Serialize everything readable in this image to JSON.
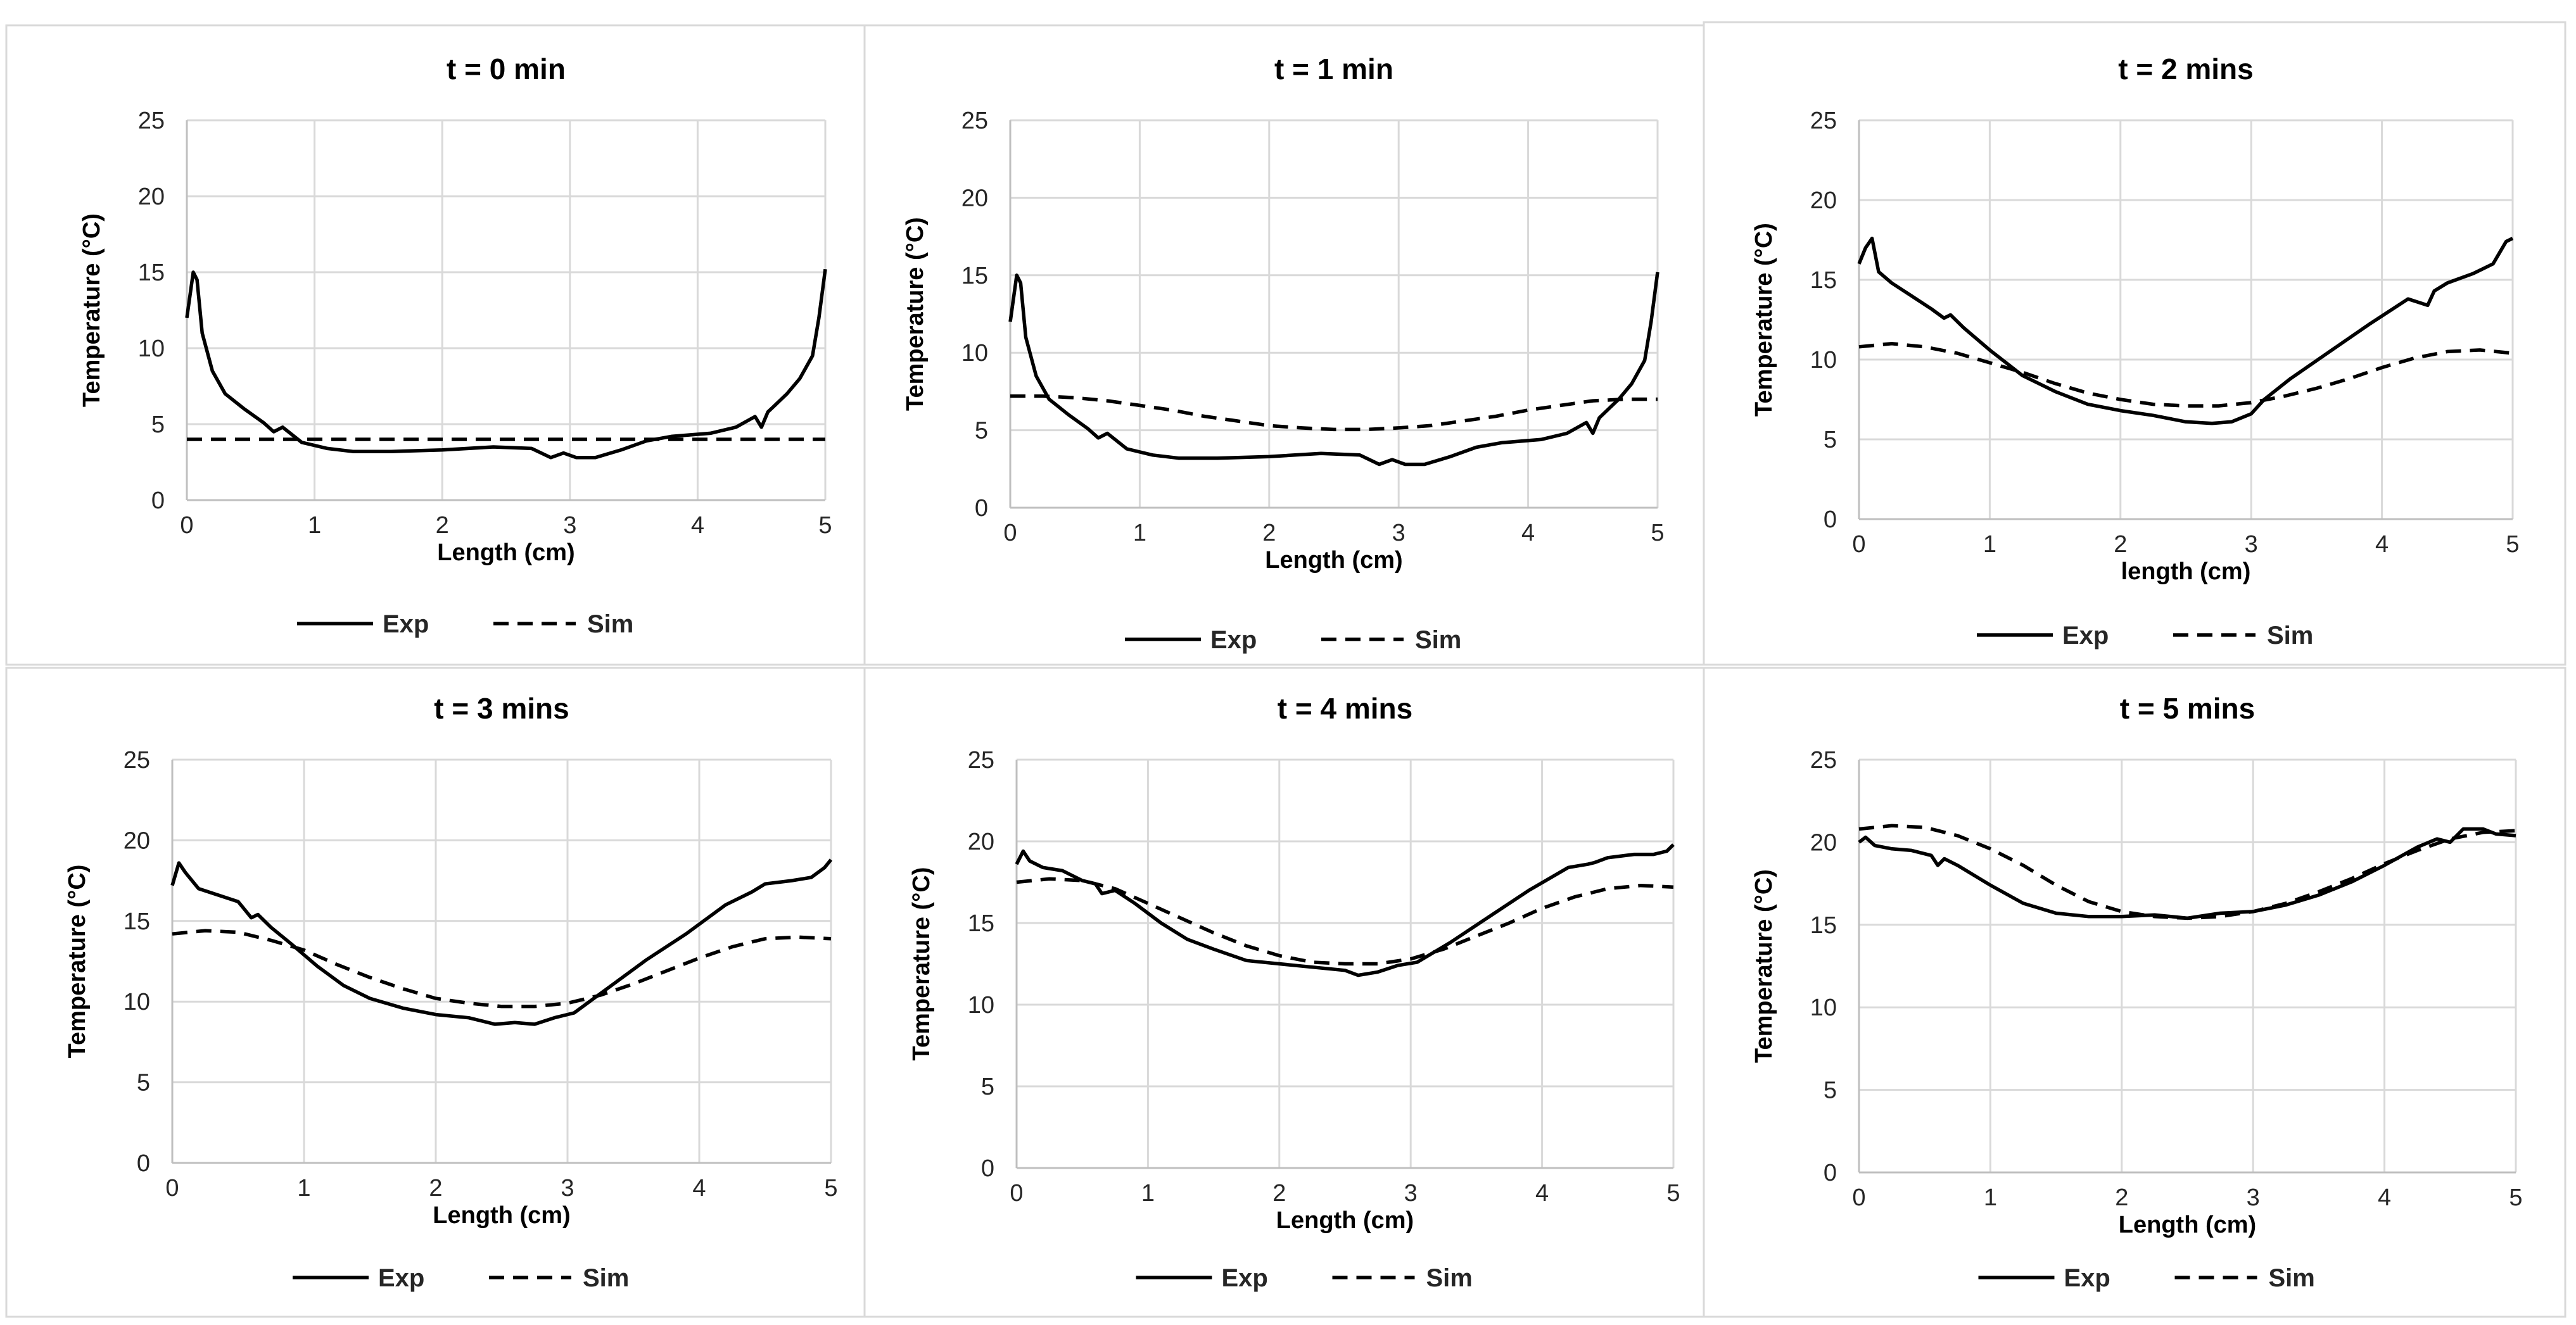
{
  "chart_data": [
    {
      "type": "line",
      "title": "t = 0 min",
      "xlabel": "Length (cm)",
      "ylabel": "Temperature (°C)",
      "xlim": [
        0,
        5
      ],
      "ylim": [
        0,
        25
      ],
      "xticks": [
        "0",
        "1",
        "2",
        "3",
        "4",
        "5"
      ],
      "yticks": [
        "0",
        "5",
        "10",
        "15",
        "20",
        "25"
      ],
      "grid": true,
      "legend_position": "bottom",
      "series": [
        {
          "name": "Exp",
          "style": "solid",
          "x": [
            0,
            0.05,
            0.08,
            0.12,
            0.2,
            0.3,
            0.45,
            0.6,
            0.68,
            0.75,
            0.9,
            1.1,
            1.3,
            1.6,
            2,
            2.4,
            2.7,
            2.85,
            2.95,
            3.05,
            3.2,
            3.4,
            3.6,
            3.8,
            4.1,
            4.3,
            4.45,
            4.5,
            4.55,
            4.6,
            4.7,
            4.8,
            4.9,
            4.95,
            5
          ],
          "y": [
            12,
            15,
            14.5,
            11,
            8.5,
            7,
            6,
            5.1,
            4.5,
            4.8,
            3.8,
            3.4,
            3.2,
            3.2,
            3.3,
            3.5,
            3.4,
            2.8,
            3.1,
            2.8,
            2.8,
            3.3,
            3.9,
            4.2,
            4.4,
            4.8,
            5.5,
            4.8,
            5.8,
            6.2,
            7,
            8,
            9.5,
            12,
            15.2
          ]
        },
        {
          "name": "Sim",
          "style": "dashed",
          "x": [
            0,
            0.5,
            1,
            1.5,
            2,
            2.5,
            3,
            3.5,
            4,
            4.5,
            5
          ],
          "y": [
            4,
            4,
            4,
            4,
            4,
            4,
            4,
            4,
            4,
            4,
            4
          ]
        }
      ],
      "legend": [
        "Exp",
        "Sim"
      ]
    },
    {
      "type": "line",
      "title": "t = 1 min",
      "xlabel": "Length (cm)",
      "ylabel": "Temperature (°C)",
      "xlim": [
        0,
        5
      ],
      "ylim": [
        0,
        25
      ],
      "xticks": [
        "0",
        "1",
        "2",
        "3",
        "4",
        "5"
      ],
      "yticks": [
        "0",
        "5",
        "10",
        "15",
        "20",
        "25"
      ],
      "grid": true,
      "legend_position": "bottom",
      "series": [
        {
          "name": "Exp",
          "style": "solid",
          "x": [
            0,
            0.05,
            0.08,
            0.12,
            0.2,
            0.3,
            0.45,
            0.6,
            0.68,
            0.75,
            0.9,
            1.1,
            1.3,
            1.6,
            2,
            2.4,
            2.7,
            2.85,
            2.95,
            3.05,
            3.2,
            3.4,
            3.6,
            3.8,
            4.1,
            4.3,
            4.45,
            4.5,
            4.55,
            4.6,
            4.7,
            4.8,
            4.9,
            4.95,
            5
          ],
          "y": [
            12,
            15,
            14.5,
            11,
            8.5,
            7,
            6,
            5.1,
            4.5,
            4.8,
            3.8,
            3.4,
            3.2,
            3.2,
            3.3,
            3.5,
            3.4,
            2.8,
            3.1,
            2.8,
            2.8,
            3.3,
            3.9,
            4.2,
            4.4,
            4.8,
            5.5,
            4.8,
            5.8,
            6.2,
            7,
            8,
            9.5,
            12,
            15.2
          ]
        },
        {
          "name": "Sim",
          "style": "dashed",
          "x": [
            0,
            0.25,
            0.5,
            0.75,
            1,
            1.25,
            1.5,
            1.75,
            2,
            2.25,
            2.5,
            2.75,
            3,
            3.25,
            3.5,
            3.75,
            4,
            4.25,
            4.5,
            4.75,
            5
          ],
          "y": [
            7.2,
            7.2,
            7.1,
            6.9,
            6.6,
            6.3,
            5.9,
            5.6,
            5.3,
            5.15,
            5.05,
            5.05,
            5.15,
            5.3,
            5.6,
            5.9,
            6.3,
            6.6,
            6.9,
            7.0,
            7.0
          ]
        }
      ],
      "legend": [
        "Exp",
        "Sim"
      ]
    },
    {
      "type": "line",
      "title": "t = 2 mins",
      "xlabel": "length (cm)",
      "ylabel": "Temperature (°C)",
      "xlim": [
        0,
        5
      ],
      "ylim": [
        0,
        25
      ],
      "xticks": [
        "0",
        "1",
        "2",
        "3",
        "4",
        "5"
      ],
      "yticks": [
        "0",
        "5",
        "10",
        "15",
        "20",
        "25"
      ],
      "grid": true,
      "legend_position": "bottom",
      "series": [
        {
          "name": "Exp",
          "style": "solid",
          "x": [
            0,
            0.05,
            0.1,
            0.15,
            0.25,
            0.4,
            0.55,
            0.65,
            0.7,
            0.8,
            1,
            1.25,
            1.5,
            1.75,
            2,
            2.25,
            2.5,
            2.7,
            2.85,
            3,
            3.1,
            3.3,
            3.6,
            3.9,
            4.2,
            4.35,
            4.4,
            4.5,
            4.7,
            4.85,
            4.95,
            5
          ],
          "y": [
            16,
            17,
            17.6,
            15.5,
            14.8,
            14,
            13.2,
            12.6,
            12.8,
            12,
            10.6,
            9,
            8,
            7.2,
            6.8,
            6.5,
            6.1,
            6,
            6.1,
            6.6,
            7.5,
            8.8,
            10.5,
            12.2,
            13.8,
            13.4,
            14.3,
            14.8,
            15.4,
            16,
            17.4,
            17.6
          ]
        },
        {
          "name": "Sim",
          "style": "dashed",
          "x": [
            0,
            0.25,
            0.5,
            0.75,
            1,
            1.25,
            1.5,
            1.75,
            2,
            2.25,
            2.5,
            2.75,
            3,
            3.25,
            3.5,
            3.75,
            4,
            4.25,
            4.5,
            4.75,
            5
          ],
          "y": [
            10.8,
            11.0,
            10.8,
            10.4,
            9.8,
            9.2,
            8.5,
            7.9,
            7.5,
            7.2,
            7.1,
            7.1,
            7.3,
            7.7,
            8.2,
            8.8,
            9.5,
            10.1,
            10.5,
            10.6,
            10.4
          ]
        }
      ],
      "legend": [
        "Exp",
        "Sim"
      ]
    },
    {
      "type": "line",
      "title": "t = 3 mins",
      "xlabel": "Length (cm)",
      "ylabel": "Temperature (°C)",
      "xlim": [
        0,
        5
      ],
      "ylim": [
        0,
        25
      ],
      "xticks": [
        "0",
        "1",
        "2",
        "3",
        "4",
        "5"
      ],
      "yticks": [
        "0",
        "5",
        "10",
        "15",
        "20",
        "25"
      ],
      "grid": true,
      "legend_position": "bottom",
      "series": [
        {
          "name": "Exp",
          "style": "solid",
          "x": [
            0,
            0.05,
            0.1,
            0.2,
            0.35,
            0.5,
            0.6,
            0.65,
            0.75,
            0.9,
            1.1,
            1.3,
            1.5,
            1.75,
            2,
            2.25,
            2.45,
            2.6,
            2.75,
            2.9,
            3.05,
            3.3,
            3.6,
            3.9,
            4.2,
            4.35,
            4.4,
            4.5,
            4.7,
            4.85,
            4.95,
            5
          ],
          "y": [
            17.2,
            18.6,
            18,
            17,
            16.6,
            16.2,
            15.2,
            15.4,
            14.6,
            13.6,
            12.2,
            11,
            10.2,
            9.6,
            9.2,
            9,
            8.6,
            8.7,
            8.6,
            9,
            9.3,
            10.8,
            12.6,
            14.2,
            16,
            16.6,
            16.8,
            17.3,
            17.5,
            17.7,
            18.3,
            18.8
          ]
        },
        {
          "name": "Sim",
          "style": "dashed",
          "x": [
            0,
            0.25,
            0.5,
            0.75,
            1,
            1.25,
            1.5,
            1.75,
            2,
            2.25,
            2.5,
            2.75,
            3,
            3.25,
            3.5,
            3.75,
            4,
            4.25,
            4.5,
            4.75,
            5
          ],
          "y": [
            14.2,
            14.4,
            14.3,
            13.8,
            13.2,
            12.3,
            11.5,
            10.8,
            10.2,
            9.9,
            9.7,
            9.7,
            9.9,
            10.4,
            11.1,
            11.9,
            12.7,
            13.4,
            13.9,
            14.0,
            13.9
          ]
        }
      ],
      "legend": [
        "Exp",
        "Sim"
      ]
    },
    {
      "type": "line",
      "title": "t = 4 mins",
      "xlabel": "Length (cm)",
      "ylabel": "Temperature (°C)",
      "xlim": [
        0,
        5
      ],
      "ylim": [
        0,
        25
      ],
      "xticks": [
        "0",
        "1",
        "2",
        "3",
        "4",
        "5"
      ],
      "yticks": [
        "0",
        "5",
        "10",
        "15",
        "20",
        "25"
      ],
      "grid": true,
      "legend_position": "bottom",
      "series": [
        {
          "name": "Exp",
          "style": "solid",
          "x": [
            0,
            0.05,
            0.1,
            0.2,
            0.35,
            0.5,
            0.6,
            0.65,
            0.75,
            0.9,
            1.1,
            1.3,
            1.5,
            1.75,
            2,
            2.25,
            2.5,
            2.6,
            2.75,
            2.9,
            3.05,
            3.3,
            3.6,
            3.9,
            4.2,
            4.35,
            4.4,
            4.5,
            4.7,
            4.85,
            4.95,
            5
          ],
          "y": [
            18.6,
            19.4,
            18.8,
            18.4,
            18.2,
            17.6,
            17.4,
            16.8,
            17,
            16.2,
            15,
            14,
            13.4,
            12.7,
            12.5,
            12.3,
            12.1,
            11.8,
            12,
            12.4,
            12.6,
            13.8,
            15.4,
            17,
            18.4,
            18.6,
            18.7,
            19,
            19.2,
            19.2,
            19.4,
            19.8
          ]
        },
        {
          "name": "Sim",
          "style": "dashed",
          "x": [
            0,
            0.25,
            0.5,
            0.75,
            1,
            1.25,
            1.5,
            1.75,
            2,
            2.25,
            2.5,
            2.75,
            3,
            3.25,
            3.5,
            3.75,
            4,
            4.25,
            4.5,
            4.75,
            5
          ],
          "y": [
            17.5,
            17.7,
            17.6,
            17.1,
            16.2,
            15.3,
            14.4,
            13.6,
            13.0,
            12.6,
            12.5,
            12.5,
            12.8,
            13.4,
            14.2,
            15.0,
            15.9,
            16.6,
            17.1,
            17.3,
            17.2
          ]
        }
      ],
      "legend": [
        "Exp",
        "Sim"
      ]
    },
    {
      "type": "line",
      "title": "t = 5 mins",
      "xlabel": "Length (cm)",
      "ylabel": "Temperature (°C)",
      "xlim": [
        0,
        5
      ],
      "ylim": [
        0,
        25
      ],
      "xticks": [
        "0",
        "1",
        "2",
        "3",
        "4",
        "5"
      ],
      "yticks": [
        "0",
        "5",
        "10",
        "15",
        "20",
        "25"
      ],
      "grid": true,
      "legend_position": "bottom",
      "series": [
        {
          "name": "Exp",
          "style": "solid",
          "x": [
            0,
            0.05,
            0.12,
            0.25,
            0.4,
            0.55,
            0.6,
            0.65,
            0.75,
            1,
            1.25,
            1.5,
            1.75,
            2,
            2.25,
            2.5,
            2.75,
            3,
            3.25,
            3.5,
            3.75,
            4,
            4.25,
            4.4,
            4.5,
            4.6,
            4.75,
            4.85,
            5
          ],
          "y": [
            20,
            20.3,
            19.8,
            19.6,
            19.5,
            19.2,
            18.6,
            19,
            18.6,
            17.4,
            16.3,
            15.7,
            15.5,
            15.5,
            15.6,
            15.4,
            15.7,
            15.8,
            16.2,
            16.8,
            17.6,
            18.6,
            19.7,
            20.2,
            20,
            20.8,
            20.8,
            20.5,
            20.4
          ]
        },
        {
          "name": "Sim",
          "style": "dashed",
          "x": [
            0,
            0.25,
            0.5,
            0.75,
            1,
            1.25,
            1.5,
            1.75,
            2,
            2.25,
            2.5,
            2.75,
            3,
            3.25,
            3.5,
            3.75,
            4,
            4.25,
            4.5,
            4.75,
            5
          ],
          "y": [
            20.8,
            21.0,
            20.9,
            20.4,
            19.6,
            18.6,
            17.4,
            16.4,
            15.8,
            15.5,
            15.4,
            15.5,
            15.8,
            16.3,
            17.0,
            17.8,
            18.7,
            19.5,
            20.2,
            20.6,
            20.7
          ]
        }
      ],
      "legend": [
        "Exp",
        "Sim"
      ]
    }
  ]
}
